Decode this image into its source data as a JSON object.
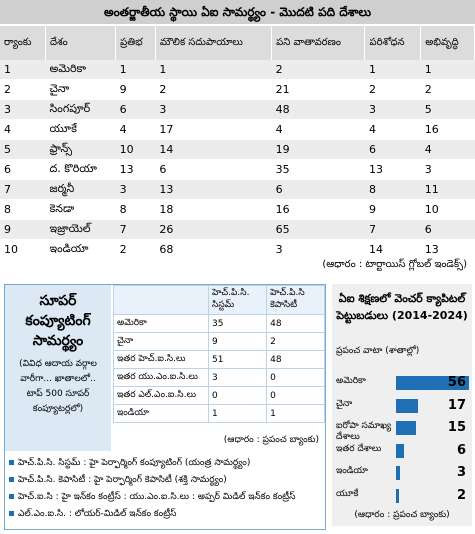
{
  "top_table": {
    "title": "అంతర్జాతీయ స్థాయి ఏఐ సామర్థ్యం - మొదటి పది దేశాలు",
    "headers": [
      "ర్యాంకు",
      "దేశం",
      "ప్రతిభ",
      "మౌలిక సదుపాయాలు",
      "పని వాతావరణం",
      "పరిశోధన",
      "అభివృద్ధి"
    ],
    "rows": [
      [
        1,
        "అమెరికా",
        1,
        1,
        2,
        1,
        1
      ],
      [
        2,
        "చైనా",
        9,
        2,
        21,
        2,
        2
      ],
      [
        3,
        "సింగపూర్",
        6,
        3,
        48,
        3,
        5
      ],
      [
        4,
        "యూకే",
        4,
        17,
        4,
        4,
        16
      ],
      [
        5,
        "ఫ్రాన్స్",
        10,
        14,
        19,
        6,
        4
      ],
      [
        6,
        "ద. కొరియా",
        13,
        6,
        35,
        13,
        3
      ],
      [
        7,
        "జర్మనీ",
        3,
        13,
        6,
        8,
        11
      ],
      [
        8,
        "కెనడా",
        8,
        18,
        16,
        9,
        10
      ],
      [
        9,
        "ఇజ్రాయెల్",
        7,
        26,
        65,
        7,
        6
      ],
      [
        10,
        "ఇండియా",
        2,
        68,
        3,
        14,
        13
      ]
    ],
    "source": "(ఆధారం : టార్టాయిస్ గ్లోబల్ ఇండెక్స్)"
  },
  "supercomputing": {
    "title": "సూపర్ కంప్యూటింగ్ సామర్థ్యం",
    "subtitle": "(వివిధ ఆదాయ వర్గాల వారీగా... ఖాతాలలో.. టాప్ 500 సూపర్ కంప్యూటర్లలో)",
    "headers": [
      "హెచ్.పి.సి. సిస్టమ్",
      "హెచ్.పి.సి కెపాసిటీ"
    ],
    "rows": [
      [
        "అమెరికా",
        35,
        48
      ],
      [
        "చైనా",
        9,
        2
      ],
      [
        "ఇతర హెచ్.ఐ.సి.లు",
        51,
        48
      ],
      [
        "ఇతర యు.ఎం.ఐ.సి.లు",
        3,
        0
      ],
      [
        "ఇతర ఎల్.ఎం.ఐ.సి.లు",
        0,
        0
      ],
      [
        "ఇండియా",
        1,
        1
      ]
    ],
    "source": "(ఆధారం : ప్రపంచ బ్యాంకు)",
    "notes": [
      "హెచ్.పి.సి. సిస్టమ్ : హై పెర్ఫార్మింగ్ కంప్యూటింగ్ (యంత్ర సామర్థ్యం)",
      "హెచ్.పి.సి. కెపాసిటీ : హై పెర్ఫార్మింగ్ కెపాసిటీ (శక్తి సామర్థ్యం)",
      "హెచ్.ఐ.సి : హై ఇన్‌కం కంట్రీస్ : యు.ఎం.ఐ.సి.లు : అప్పర్ మిడిల్ ఇన్‌కం కంట్రీస్",
      "ఎల్.ఎం.ఐ.సి. : లోయర్-మిడిల్ ఇన్‌కం కంట్రీస్"
    ]
  },
  "chart_data": {
    "type": "bar",
    "title": "ఏఐ శిక్షణలో వెంచర్ క్యాపిటల్ పెట్టుబడులు (2014-2024)",
    "subtitle": "ప్రపంచ వాటా (శాతాల్లో)",
    "categories": [
      "అమెరికా",
      "చైనా",
      "ఐరోపా సమాఖ్య దేశాలు",
      "ఇతర దేశాలు",
      "ఇండియా",
      "యూకే"
    ],
    "values": [
      56,
      17,
      15,
      6,
      3,
      2
    ],
    "color": "#1f6fb5",
    "source": "(ఆధారం : ప్రపంచ బ్యాంకు)"
  }
}
